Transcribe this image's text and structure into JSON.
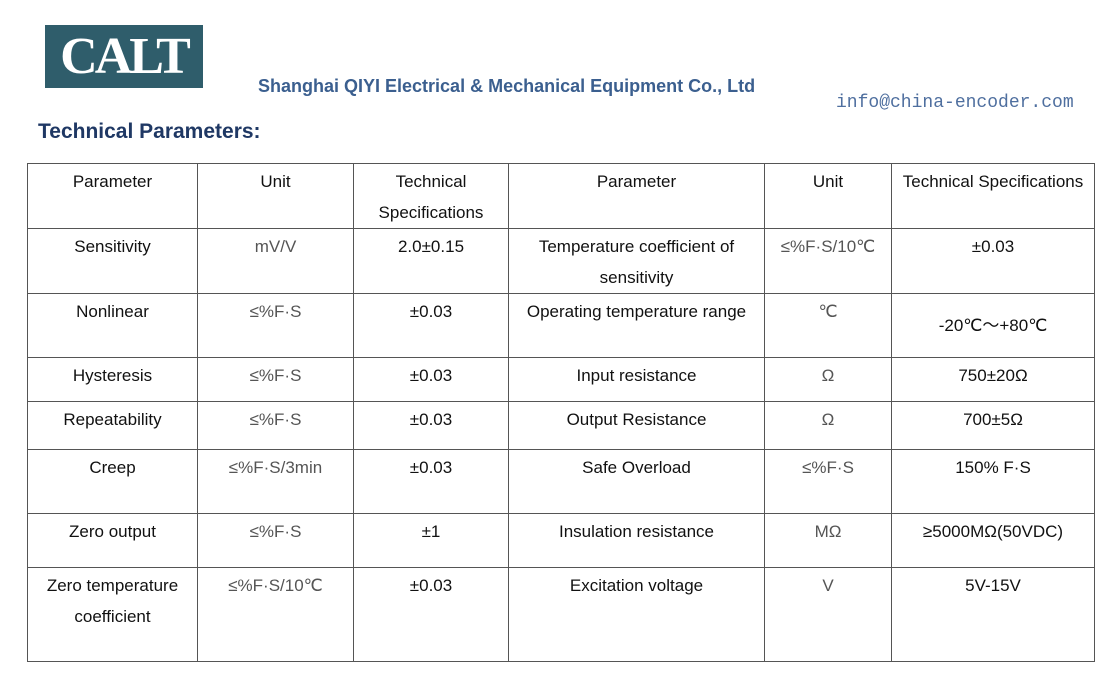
{
  "header": {
    "logo": "CALT",
    "company": "Shanghai QIYI Electrical & Mechanical Equipment Co., Ltd",
    "email": "info@china-encoder.com"
  },
  "section_title": "Technical Parameters:",
  "table": {
    "header": [
      "Parameter",
      "Unit",
      "Technical Specifications",
      "Parameter",
      "Unit",
      "Technical Specifications"
    ],
    "rows": [
      [
        "Sensitivity",
        "mV/V",
        "2.0±0.15",
        "Temperature coefficient of sensitivity",
        "≤%F·S/10℃",
        "±0.03"
      ],
      [
        "Nonlinear",
        "≤%F·S",
        "±0.03",
        "Operating temperature range",
        "℃",
        "-20℃～+80℃"
      ],
      [
        "Hysteresis",
        "≤%F·S",
        "±0.03",
        "Input resistance",
        "Ω",
        "750±20Ω"
      ],
      [
        "Repeatability",
        "≤%F·S",
        "±0.03",
        "Output Resistance",
        "Ω",
        "700±5Ω"
      ],
      [
        "Creep",
        "≤%F·S/3min",
        "±0.03",
        "Safe Overload",
        "≤%F·S",
        "150% F·S"
      ],
      [
        "Zero output",
        "≤%F·S",
        "±1",
        "Insulation resistance",
        "MΩ",
        "≥5000MΩ(50VDC)"
      ],
      [
        "Zero temperature coefficient",
        "≤%F·S/10℃",
        "±0.03",
        "Excitation voltage",
        "V",
        "5V-15V"
      ]
    ]
  }
}
